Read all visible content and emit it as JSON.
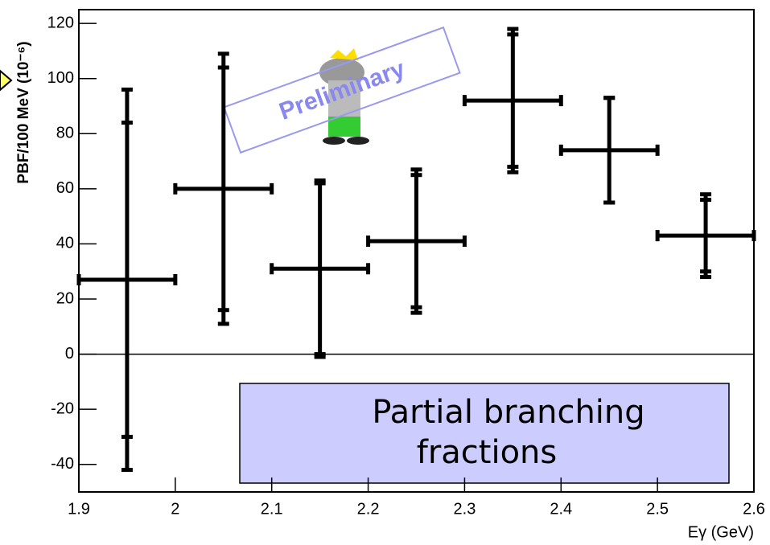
{
  "chart_data": {
    "type": "errorbar",
    "xlabel": "Eγ (GeV)",
    "ylabel": "PBF/100 MeV (10⁻⁶)",
    "stamp": "Preliminary",
    "annotation": [
      "Partial branching",
      "fractions"
    ],
    "x": [
      1.95,
      2.05,
      2.15,
      2.25,
      2.35,
      2.45,
      2.55
    ],
    "x_errors": [
      0.05,
      0.05,
      0.05,
      0.05,
      0.05,
      0.05,
      0.05
    ],
    "values": [
      27,
      60,
      31,
      41,
      92,
      74,
      43
    ],
    "stat_errors": [
      57,
      44,
      31,
      24,
      24,
      19,
      13
    ],
    "total_errors": [
      69,
      49,
      32,
      26,
      26,
      19,
      15
    ],
    "color": "#000000",
    "xlim": [
      1.9,
      2.6
    ],
    "xticks": [
      1.9,
      2,
      2.1,
      2.2,
      2.3,
      2.4,
      2.5,
      2.6
    ],
    "ylim": [
      -50,
      125
    ],
    "yticks": [
      -40,
      -20,
      0,
      20,
      40,
      60,
      80,
      100,
      120
    ]
  }
}
